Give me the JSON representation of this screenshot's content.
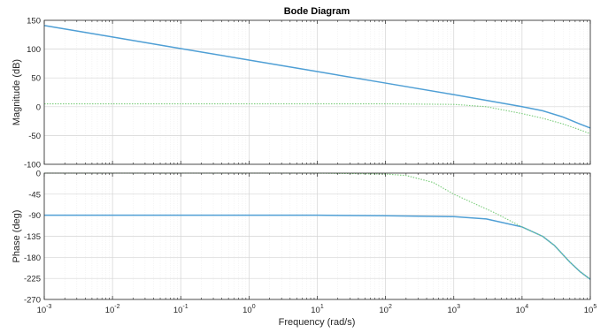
{
  "chart_data": {
    "type": "line",
    "title": "Bode Diagram",
    "xlabel": "Frequency  (rad/s)",
    "xscale": "log",
    "xlim": [
      0.001,
      100000
    ],
    "x_ticks": [
      {
        "base": "10",
        "exp": "-3"
      },
      {
        "base": "10",
        "exp": "-2"
      },
      {
        "base": "10",
        "exp": "-1"
      },
      {
        "base": "10",
        "exp": "0"
      },
      {
        "base": "10",
        "exp": "1"
      },
      {
        "base": "10",
        "exp": "2"
      },
      {
        "base": "10",
        "exp": "3"
      },
      {
        "base": "10",
        "exp": "4"
      },
      {
        "base": "10",
        "exp": "5"
      }
    ],
    "grid": true,
    "colors": {
      "blue": "#4f9fd5",
      "green": "#7ccd7c"
    },
    "subplots": [
      {
        "ylabel": "Magnitude (dB)",
        "ylim": [
          -100,
          150
        ],
        "yticks": [
          "150",
          "100",
          "50",
          "0",
          "-50",
          "-100"
        ],
        "series": [
          {
            "style": "solid",
            "color": "#4f9fd5",
            "x": [
              0.001,
              0.01,
              0.1,
              1,
              10,
              100,
              1000,
              3000,
              10000,
              20000,
              40000,
              70000,
              100000
            ],
            "y": [
              141,
              121,
              101,
              81,
              61,
              41,
              21,
              11,
              0,
              -7,
              -18,
              -30,
              -37
            ]
          },
          {
            "style": "dotted",
            "color": "#7ccd7c",
            "x": [
              0.001,
              0.01,
              0.1,
              1,
              10,
              100,
              1000,
              3000,
              10000,
              20000,
              40000,
              70000,
              100000
            ],
            "y": [
              5,
              5,
              5,
              5,
              5,
              5,
              4,
              0,
              -12,
              -20,
              -30,
              -40,
              -47
            ]
          }
        ]
      },
      {
        "ylabel": "Phase (deg)",
        "ylim": [
          -270,
          0
        ],
        "yticks": [
          "0",
          "-45",
          "-90",
          "-135",
          "-180",
          "-225",
          "-270"
        ],
        "series": [
          {
            "style": "solid",
            "color": "#4f9fd5",
            "x": [
              0.001,
              0.01,
              0.1,
              1,
              10,
              100,
              1000,
              3000,
              10000,
              20000,
              30000,
              50000,
              70000,
              100000
            ],
            "y": [
              -90,
              -90,
              -90,
              -90,
              -90,
              -91,
              -93,
              -98,
              -115,
              -135,
              -155,
              -190,
              -210,
              -227
            ]
          },
          {
            "style": "dotted",
            "color": "#7ccd7c",
            "x": [
              0.001,
              0.01,
              0.1,
              1,
              10,
              100,
              200,
              500,
              1000,
              2000,
              4000,
              10000,
              20000,
              30000,
              50000,
              70000,
              100000
            ],
            "y": [
              0,
              0,
              0,
              0,
              0,
              -2,
              -5,
              -20,
              -45,
              -65,
              -85,
              -115,
              -135,
              -155,
              -190,
              -210,
              -227
            ]
          }
        ]
      }
    ]
  }
}
